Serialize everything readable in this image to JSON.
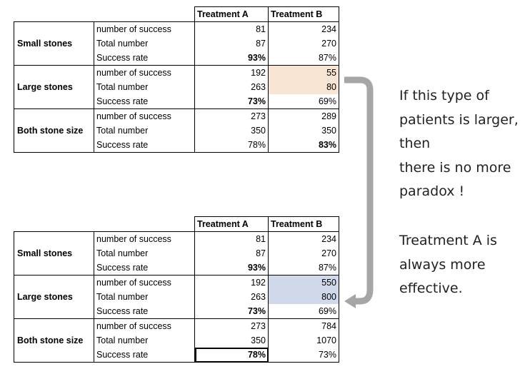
{
  "top_table": {
    "headers": [
      "Treatment A",
      "Treatment B"
    ],
    "groups": [
      {
        "name": "Small stones",
        "rows": [
          {
            "metric": "number of success",
            "a": "81",
            "b": "234"
          },
          {
            "metric": "Total number",
            "a": "87",
            "b": "270"
          },
          {
            "metric": "Success rate",
            "a": "93%",
            "b": "87%"
          }
        ]
      },
      {
        "name": "Large stones",
        "rows": [
          {
            "metric": "number of success",
            "a": "192",
            "b": "55"
          },
          {
            "metric": "Total number",
            "a": "263",
            "b": "80"
          },
          {
            "metric": "Success rate",
            "a": "73%",
            "b": "69%"
          }
        ]
      },
      {
        "name": "Both stone size",
        "rows": [
          {
            "metric": "number of success",
            "a": "273",
            "b": "289"
          },
          {
            "metric": "Total number",
            "a": "350",
            "b": "350"
          },
          {
            "metric": "Success rate",
            "a": "78%",
            "b": "83%"
          }
        ]
      }
    ]
  },
  "bottom_table": {
    "headers": [
      "Treatment A",
      "Treatment B"
    ],
    "groups": [
      {
        "name": "Small stones",
        "rows": [
          {
            "metric": "number of success",
            "a": "81",
            "b": "234"
          },
          {
            "metric": "Total number",
            "a": "87",
            "b": "270"
          },
          {
            "metric": "Success rate",
            "a": "93%",
            "b": "87%"
          }
        ]
      },
      {
        "name": "Large stones",
        "rows": [
          {
            "metric": "number of success",
            "a": "192",
            "b": "550"
          },
          {
            "metric": "Total number",
            "a": "263",
            "b": "800"
          },
          {
            "metric": "Success rate",
            "a": "73%",
            "b": "69%"
          }
        ]
      },
      {
        "name": "Both stone size",
        "rows": [
          {
            "metric": "number of success",
            "a": "273",
            "b": "784"
          },
          {
            "metric": "Total number",
            "a": "350",
            "b": "1070"
          },
          {
            "metric": "Success rate",
            "a": "78%",
            "b": "73%"
          }
        ]
      }
    ]
  },
  "note_top": [
    "If this type of",
    "patients is larger,",
    "then",
    "there is no more",
    "paradox !"
  ],
  "note_bottom": [
    "Treatment A is",
    "always more",
    "effective."
  ],
  "colors": {
    "highlight_top": "#f7e4d3",
    "highlight_bottom": "#cfd9ea",
    "arrow": "#a6a6a6"
  }
}
